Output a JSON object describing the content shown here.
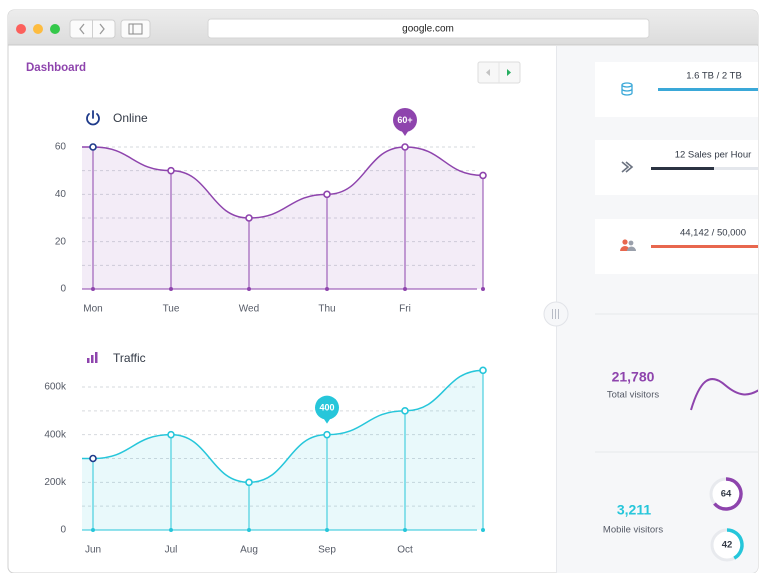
{
  "browser": {
    "url": "google.com"
  },
  "header": {
    "title": "Dashboard"
  },
  "chart_data": [
    {
      "type": "line",
      "title": "Online",
      "categories": [
        "Mon",
        "Tue",
        "Wed",
        "Thu",
        "Fri",
        null
      ],
      "values": [
        60,
        50,
        30,
        40,
        60,
        48
      ],
      "value_labels": [
        null,
        null,
        null,
        null,
        "60+",
        null
      ],
      "color": "#8e44ad",
      "ylim": [
        0,
        60
      ],
      "yticks": [
        0,
        20,
        40,
        60
      ],
      "minor_yticks": [
        10,
        30,
        50
      ],
      "grid": true
    },
    {
      "type": "line",
      "title": "Traffic",
      "categories": [
        "Jun",
        "Jul",
        "Aug",
        "Sep",
        "Oct",
        null
      ],
      "values": [
        300000,
        400000,
        200000,
        400000,
        500000,
        670000
      ],
      "value_labels": [
        null,
        null,
        null,
        "400",
        null,
        null
      ],
      "color": "#26c6da",
      "ylim": [
        0,
        600000
      ],
      "yticks": [
        0,
        {
          "value": 200000,
          "label": "200k"
        },
        {
          "value": 400000,
          "label": "400k"
        },
        {
          "value": 600000,
          "label": "600k"
        }
      ],
      "minor_yticks": [
        100000,
        300000,
        500000
      ],
      "grid": true
    }
  ],
  "stats": [
    {
      "label": "1.6 TB / 2 TB"
    },
    {
      "label": "12 Sales per Hour"
    },
    {
      "label": "44,142 / 50,000"
    }
  ],
  "visitors": [
    {
      "value": "21,780",
      "label": "Total visitors"
    },
    {
      "value": "3,211",
      "label": "Mobile visitors"
    }
  ],
  "donuts": [
    64,
    42
  ]
}
